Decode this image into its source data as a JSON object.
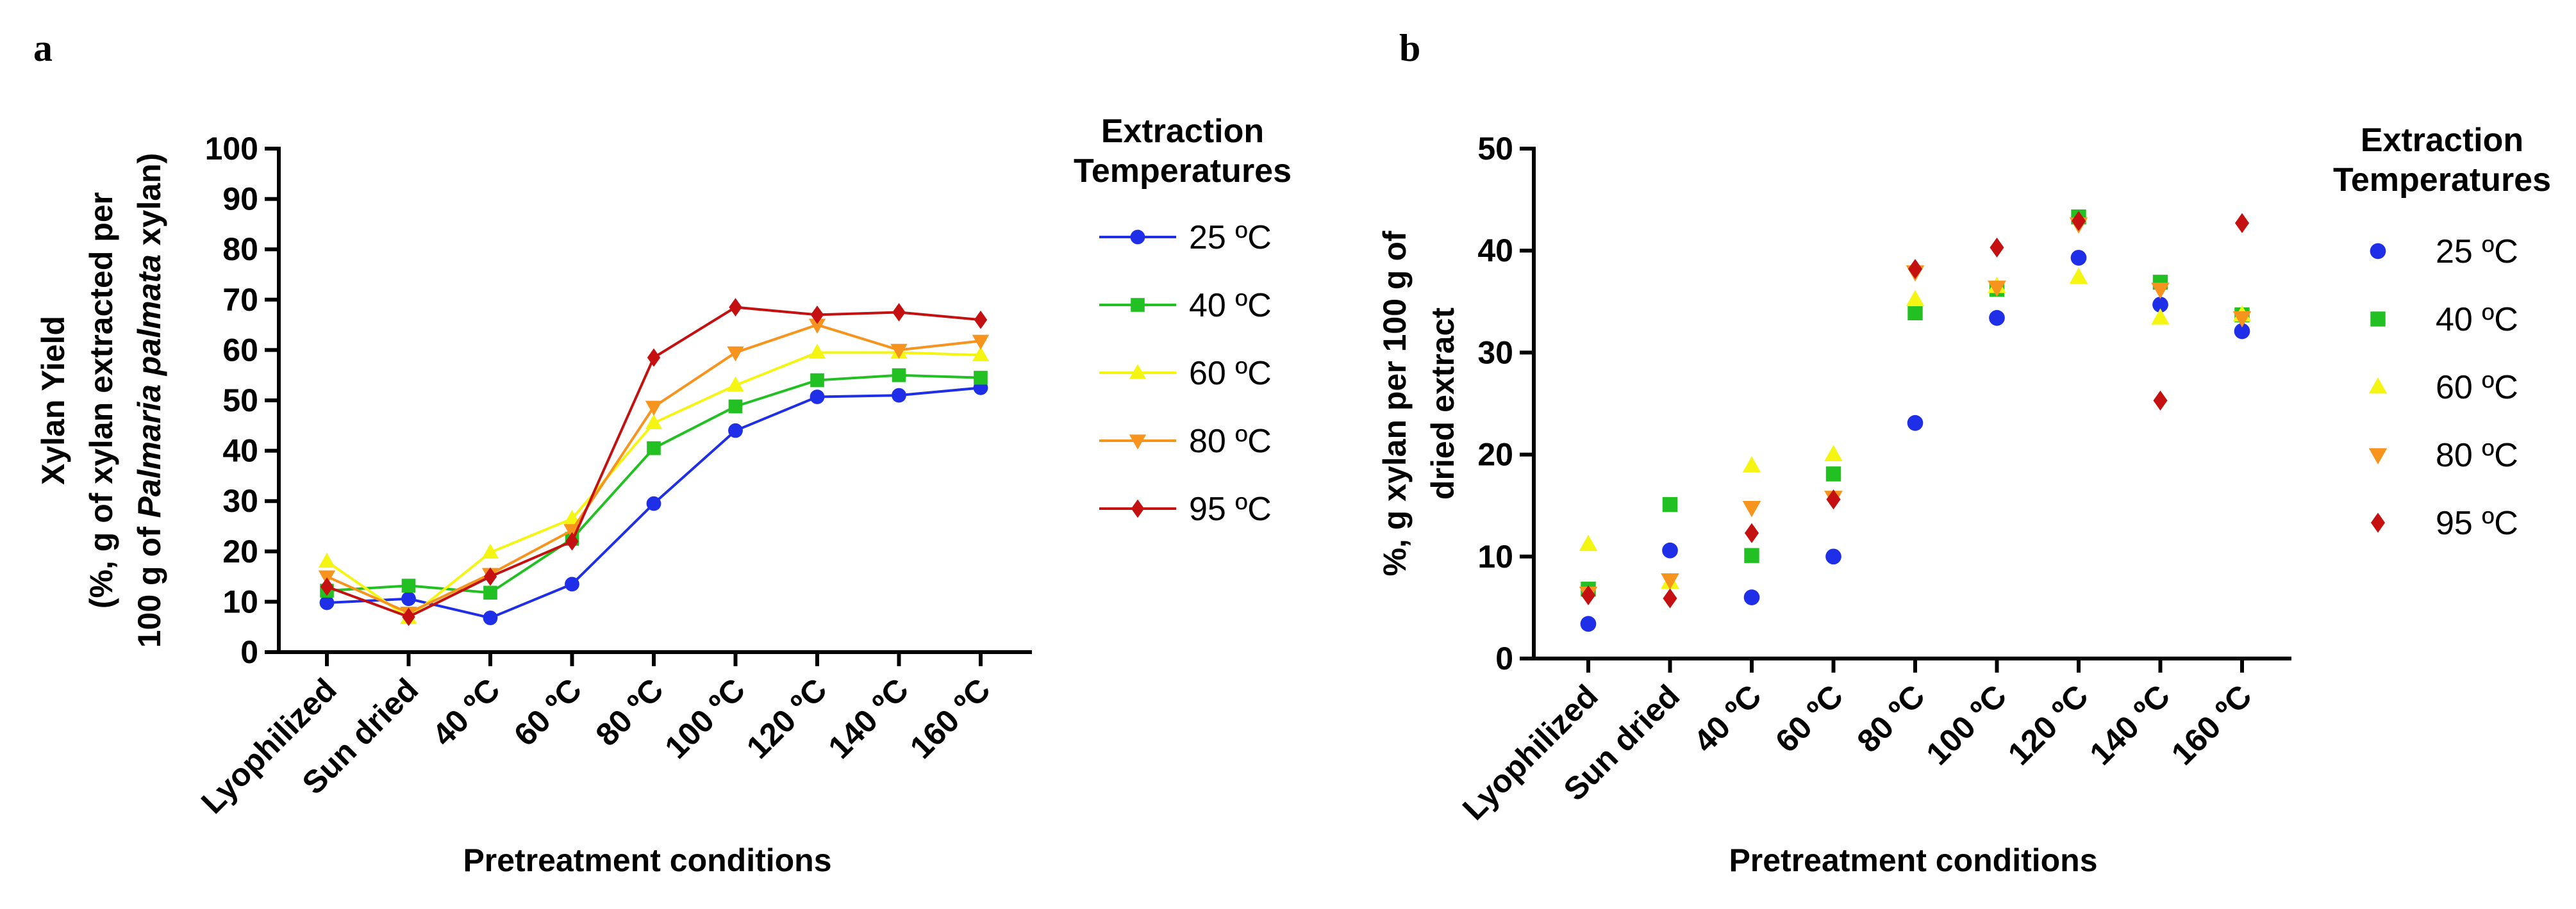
{
  "chart_data": [
    {
      "panel_label": "a",
      "type": "line",
      "categories": [
        "Lyophilized",
        "Sun dried",
        "40 ºC",
        "60 ºC",
        "80 ºC",
        "100 ºC",
        "120 ºC",
        "140 ºC",
        "160 ºC"
      ],
      "ylabel_lines": [
        "Xylan Yield",
        "(%, g of xylan extracted per",
        "100 g of Palmaria palmata xylan)"
      ],
      "ylabel_italic_phrase": "Palmaria palmata",
      "xlabel": "Pretreatment conditions",
      "ylim": [
        0,
        100
      ],
      "yticks": [
        0,
        10,
        20,
        30,
        40,
        50,
        60,
        70,
        80,
        90,
        100
      ],
      "legend_title": [
        "Extraction",
        "Temperatures"
      ],
      "legend_position": "right",
      "series": [
        {
          "name": "25 ºC",
          "color": "#1f2fe8",
          "marker": "circle",
          "values": [
            9.8,
            10.6,
            6.8,
            13.5,
            29.5,
            44,
            50.7,
            51,
            52.5
          ]
        },
        {
          "name": "40 ºC",
          "color": "#22c022",
          "marker": "square",
          "values": [
            12.2,
            13.2,
            11.8,
            22.5,
            40.5,
            48.8,
            54,
            55,
            54.5
          ]
        },
        {
          "name": "60 ºC",
          "color": "#f5f514",
          "marker": "triangle-up",
          "values": [
            18,
            6.8,
            19.8,
            26.5,
            45.5,
            53,
            59.5,
            59.5,
            59
          ]
        },
        {
          "name": "80 ºC",
          "color": "#f7941d",
          "marker": "triangle-down",
          "values": [
            15,
            7.8,
            15.5,
            24.2,
            48.7,
            59.5,
            65,
            60,
            61.8
          ]
        },
        {
          "name": "95 ºC",
          "color": "#c41010",
          "marker": "diamond",
          "values": [
            13,
            7,
            15,
            22,
            58.5,
            68.5,
            67,
            67.5,
            66
          ]
        }
      ]
    },
    {
      "panel_label": "b",
      "type": "scatter",
      "categories": [
        "Lyophilized",
        "Sun dried",
        "40 ºC",
        "60 ºC",
        "80 ºC",
        "100 ºC",
        "120 ºC",
        "140 ºC",
        "160 ºC"
      ],
      "ylabel_lines": [
        "%, g xylan per 100 g of",
        "dried extract"
      ],
      "xlabel": "Pretreatment conditions",
      "ylim": [
        0,
        50
      ],
      "yticks": [
        0,
        10,
        20,
        30,
        40,
        50
      ],
      "legend_title": [
        "Extraction",
        "Temperatures"
      ],
      "legend_position": "right",
      "series": [
        {
          "name": "25 ºC",
          "color": "#1f2fe8",
          "marker": "circle",
          "values": [
            3.4,
            10.6,
            6,
            10,
            23.1,
            33.4,
            39.3,
            34.7,
            32.1
          ]
        },
        {
          "name": "40 ºC",
          "color": "#22c022",
          "marker": "square",
          "values": [
            6.8,
            15.1,
            10.1,
            18.1,
            33.9,
            36.2,
            43.3,
            36.9,
            33.7
          ]
        },
        {
          "name": "60 ºC",
          "color": "#f5f514",
          "marker": "triangle-up",
          "values": [
            11.2,
            7.5,
            18.9,
            20,
            35.2,
            36.5,
            37.4,
            33.4,
            33.7
          ]
        },
        {
          "name": "80 ºC",
          "color": "#f7941d",
          "marker": "triangle-down",
          "values": [
            6.4,
            7.7,
            14.8,
            15.8,
            37.9,
            36.4,
            42.6,
            36.2,
            33.4
          ]
        },
        {
          "name": "95 ºC",
          "color": "#c41010",
          "marker": "diamond",
          "values": [
            6.2,
            5.9,
            12.3,
            15.6,
            38.2,
            40.3,
            42.9,
            25.3,
            42.7
          ]
        }
      ]
    }
  ]
}
